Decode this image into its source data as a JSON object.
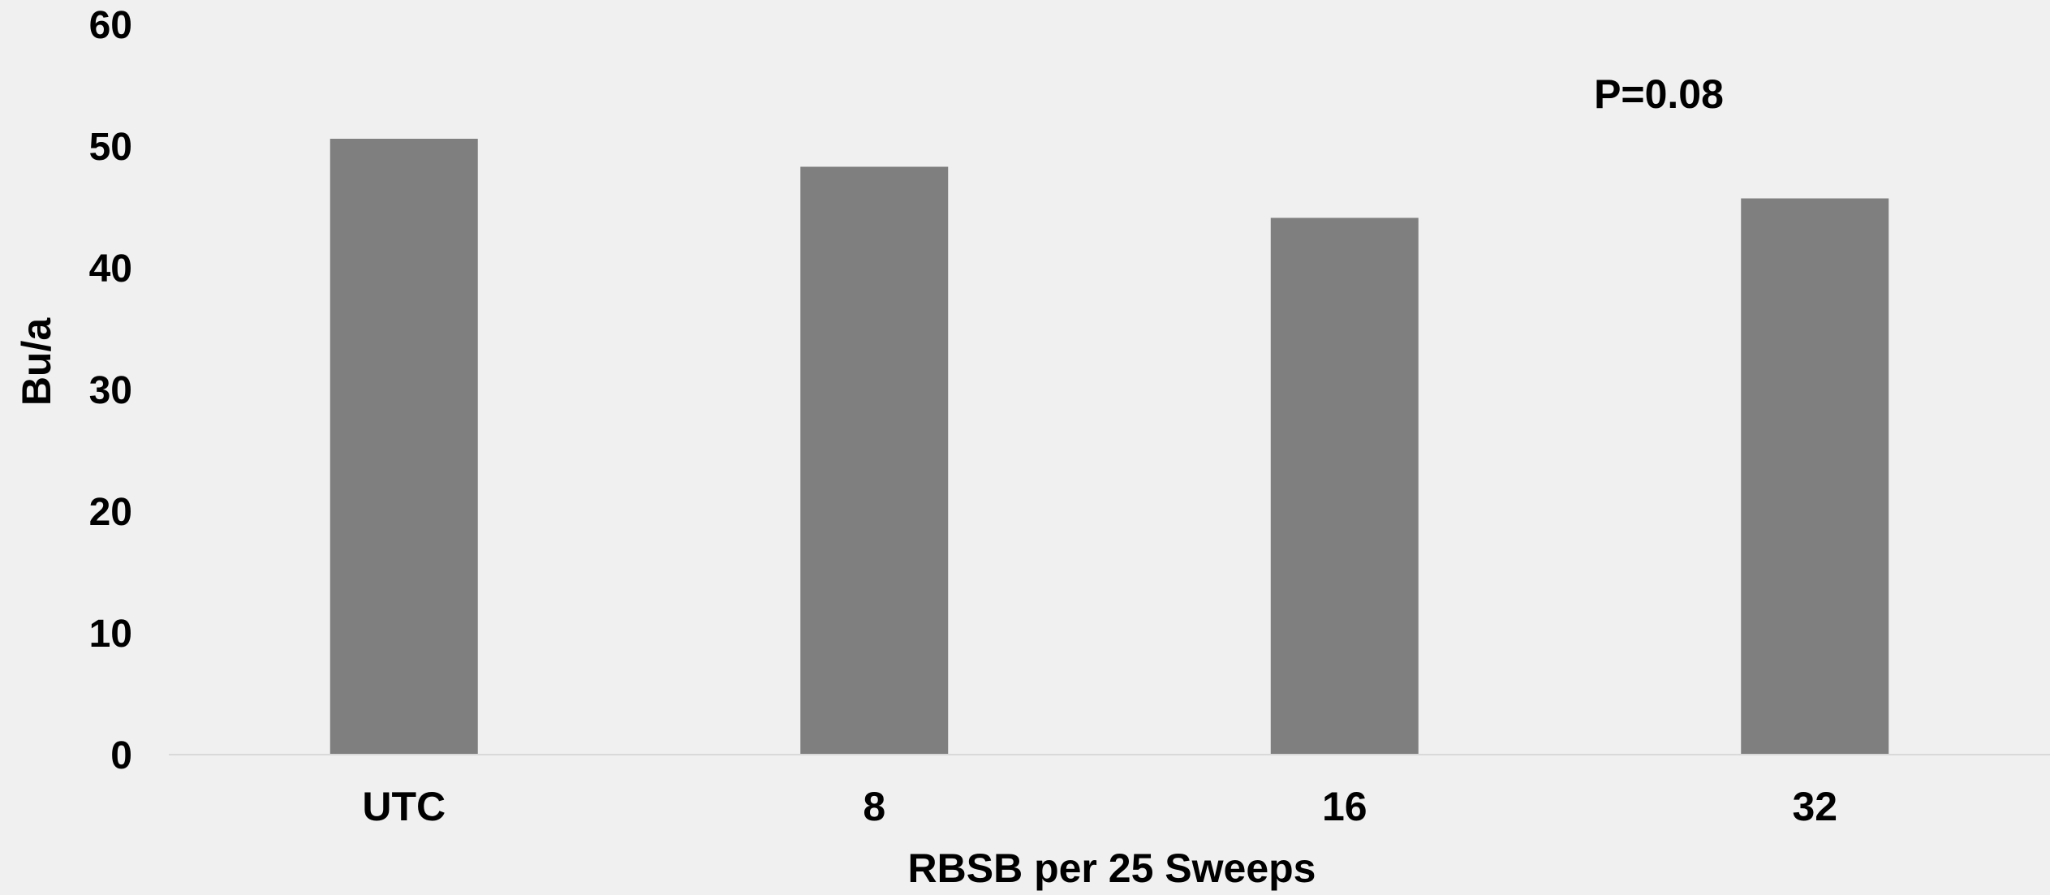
{
  "chart_data": {
    "type": "bar",
    "categories": [
      "UTC",
      "8",
      "16",
      "32"
    ],
    "values": [
      50.6,
      48.3,
      44.1,
      45.7
    ],
    "xlabel": "RBSB per 25 Sweeps",
    "ylabel": "Bu/a",
    "ylim": [
      0,
      60
    ],
    "yticks": [
      "0",
      "10",
      "20",
      "30",
      "40",
      "50",
      "60"
    ],
    "annotation": "P=0.08",
    "grid": false,
    "legend": "none",
    "colors": {
      "bar": "#7f7f7f",
      "axis": "#d9d9d9",
      "background": "#f0f0f0",
      "text": "#000000"
    }
  }
}
